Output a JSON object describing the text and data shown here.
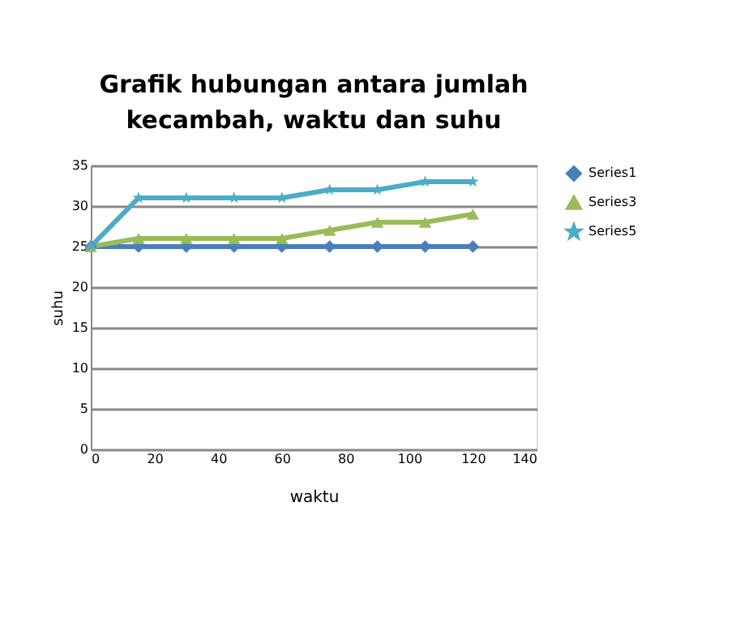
{
  "chart_data": {
    "type": "line",
    "title": "Grafik hubungan antara jumlah\nkecambah, waktu dan suhu",
    "xlabel": "waktu",
    "ylabel": "suhu",
    "x": [
      0,
      15,
      30,
      45,
      60,
      75,
      90,
      105,
      120
    ],
    "series": [
      {
        "name": "Series1",
        "color": "#4a7ebb",
        "marker": "diamond",
        "values": [
          25,
          25,
          25,
          25,
          25,
          25,
          25,
          25,
          25
        ]
      },
      {
        "name": "Series3",
        "color": "#9bbb59",
        "marker": "triangle",
        "values": [
          25,
          26,
          26,
          26,
          26,
          27,
          28,
          28,
          29
        ]
      },
      {
        "name": "Series5",
        "color": "#4bacc6",
        "marker": "star",
        "values": [
          25,
          31,
          31,
          31,
          31,
          32,
          32,
          33,
          33
        ]
      }
    ],
    "xlim": [
      0,
      140
    ],
    "xticks": [
      0,
      20,
      40,
      60,
      80,
      100,
      120,
      140
    ],
    "ylim": [
      0,
      35
    ],
    "yticks": [
      0,
      5,
      10,
      15,
      20,
      25,
      30,
      35
    ],
    "grid": "y",
    "legend": "right",
    "line_style": "solid"
  }
}
